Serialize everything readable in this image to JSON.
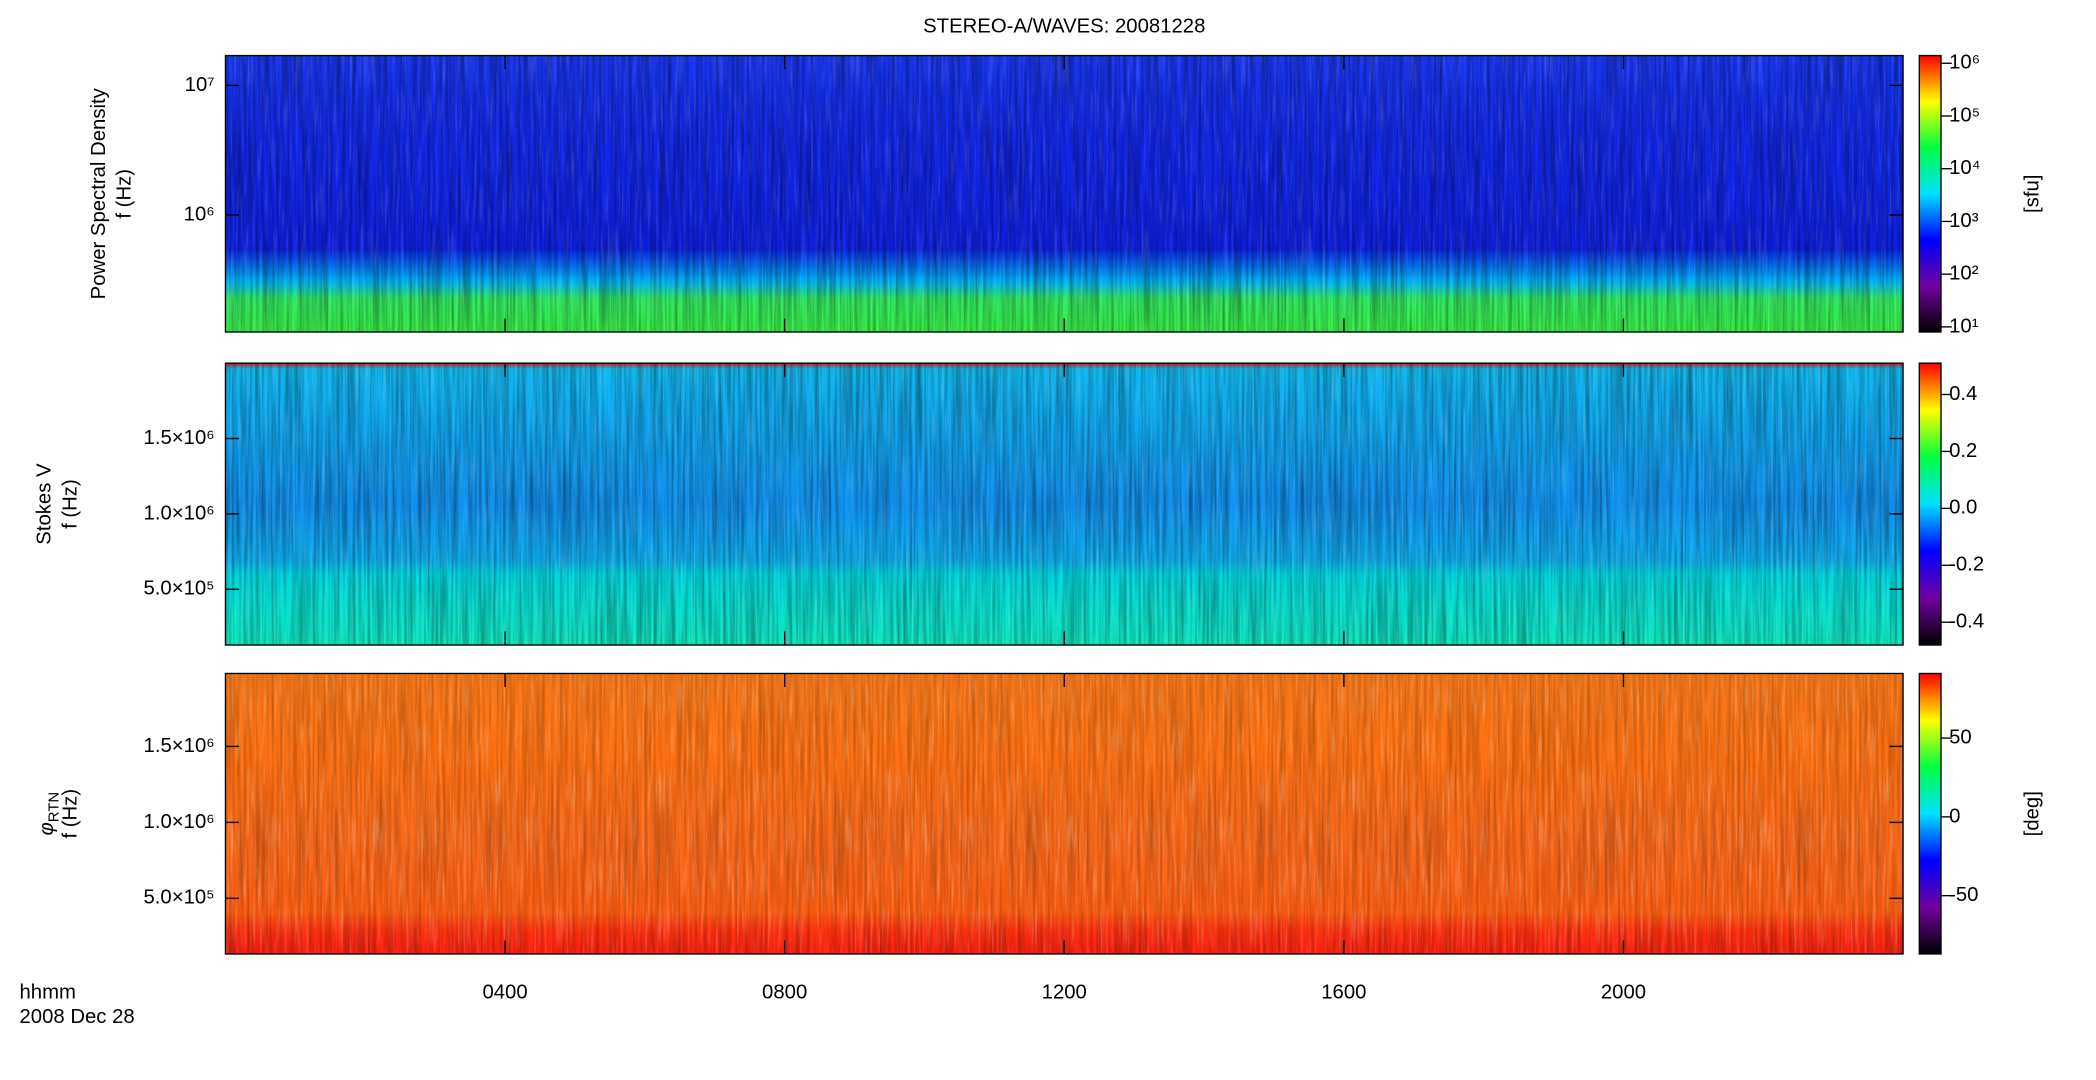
{
  "chart_data": [
    {
      "type": "spectrogram",
      "title": "STEREO-A/WAVES: 20081228",
      "ylabel": "Power Spectral Density",
      "ylabel2": "f (Hz)",
      "ylog": true,
      "ylim": [
        125000,
        17000000
      ],
      "yticks": [
        {
          "value": 1000000,
          "label": "10⁶"
        },
        {
          "value": 10000000,
          "label": "10⁷"
        }
      ],
      "fill_colors": [
        "#1838f0",
        "#1028e8",
        "#0c20e0",
        "#00b8f8",
        "#30e860",
        "#38f048"
      ],
      "colorbar": {
        "log": true,
        "clim": [
          8,
          1400000
        ],
        "label": "[sfu]",
        "colormap": [
          "#000000",
          "#7000a0",
          "#0000ff",
          "#00e0ff",
          "#00ff40",
          "#ffff00",
          "#ff0000"
        ],
        "cticks": [
          {
            "value": 10,
            "label": "10¹"
          },
          {
            "value": 100,
            "label": "10²"
          },
          {
            "value": 1000,
            "label": "10³"
          },
          {
            "value": 10000,
            "label": "10⁴"
          },
          {
            "value": 100000,
            "label": "10⁵"
          },
          {
            "value": 1000000,
            "label": "10⁶"
          }
        ]
      }
    },
    {
      "type": "spectrogram",
      "ylabel": "Stokes V",
      "ylabel2": "f (Hz)",
      "ylog": false,
      "ylim": [
        130000,
        2000000
      ],
      "yticks": [
        {
          "value": 500000,
          "label": "5.0×10⁵"
        },
        {
          "value": 1000000,
          "label": "1.0×10⁶"
        },
        {
          "value": 1500000,
          "label": "1.5×10⁶"
        }
      ],
      "fill_colors": [
        "#e02010",
        "#10b8f0",
        "#1090f0",
        "#10b0f0",
        "#00d8e0",
        "#10e8c0"
      ],
      "colorbar": {
        "log": false,
        "clim": [
          -0.48,
          0.51
        ],
        "colormap": [
          "#000000",
          "#7000a0",
          "#0000ff",
          "#00e0ff",
          "#00ff40",
          "#ffff00",
          "#ff0000"
        ],
        "cticks": [
          0.4,
          0.2,
          {
            "value": 0,
            "label": "0.0"
          },
          -0.2,
          -0.4
        ]
      }
    },
    {
      "type": "spectrogram",
      "ylabel": {
        "symbol": "φ",
        "subscript": "RTN"
      },
      "ylabel2": "f (Hz)",
      "ylog": false,
      "ylim": [
        134000,
        1980000
      ],
      "yticks": [
        {
          "value": 500000,
          "label": "5.0×10⁵"
        },
        {
          "value": 1000000,
          "label": "1.0×10⁶"
        },
        {
          "value": 1500000,
          "label": "1.5×10⁶"
        }
      ],
      "fill_colors": [
        "#f87818",
        "#ff7010",
        "#f86818",
        "#ff6010",
        "#ff3010",
        "#f82010"
      ],
      "colorbar": {
        "log": false,
        "clim": [
          -87,
          91
        ],
        "label": "[deg]",
        "colormap": [
          "#000000",
          "#7000a0",
          "#0000ff",
          "#00e0ff",
          "#00ff40",
          "#ffff00",
          "#ff0000"
        ],
        "cticks": [
          50,
          0,
          -50
        ]
      },
      "xlabel": "hhmm",
      "xsublabel": "2008 Dec 28",
      "xlim": [
        0,
        24
      ],
      "xticks": [
        {
          "value": 4,
          "label": "0400"
        },
        {
          "value": 8,
          "label": "0800"
        },
        {
          "value": 12,
          "label": "1200"
        },
        {
          "value": 16,
          "label": "1600"
        },
        {
          "value": 20,
          "label": "2000"
        }
      ]
    }
  ]
}
